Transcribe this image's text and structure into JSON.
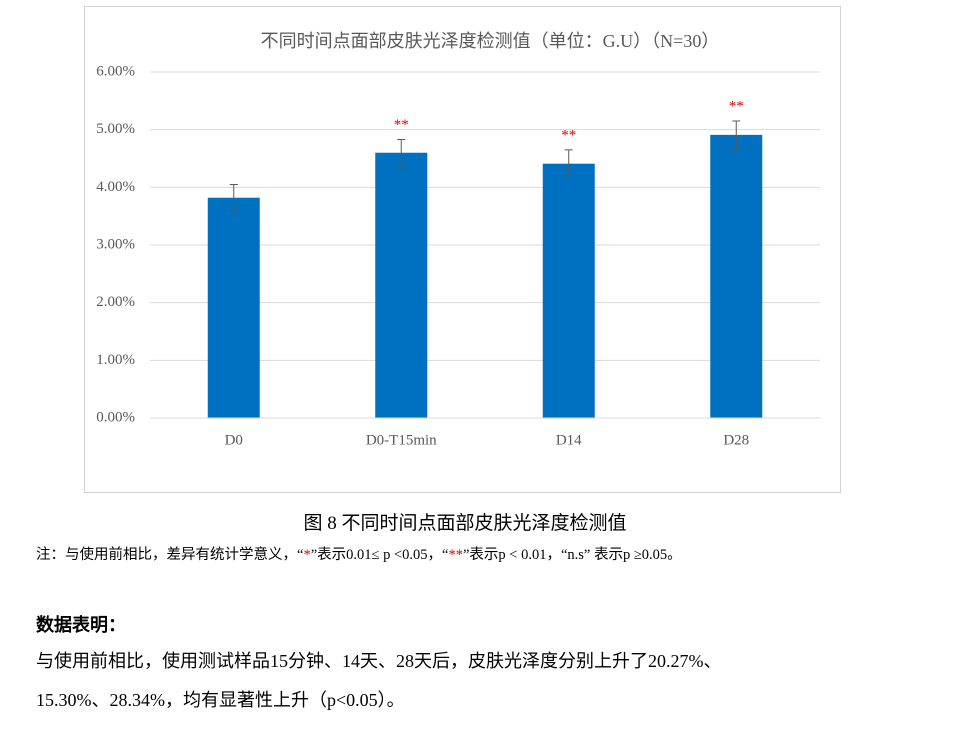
{
  "chart_data": {
    "type": "bar",
    "title": "不同时间点面部皮肤光泽度检测值（单位：G.U）（N=30）",
    "categories": [
      "D0",
      "D0-T15min",
      "D14",
      "D28"
    ],
    "values": [
      3.82,
      4.6,
      4.41,
      4.91
    ],
    "errors": [
      0.23,
      0.23,
      0.24,
      0.24
    ],
    "significance": [
      null,
      "**",
      "**",
      "**"
    ],
    "color": "#0070c0",
    "ylim": [
      0,
      6
    ],
    "yticks": [
      {
        "value": 0,
        "label": "0.00%"
      },
      {
        "value": 1,
        "label": "1.00%"
      },
      {
        "value": 2,
        "label": "2.00%"
      },
      {
        "value": 3,
        "label": "3.00%"
      },
      {
        "value": 4,
        "label": "4.00%"
      },
      {
        "value": 5,
        "label": "5.00%"
      },
      {
        "value": 6,
        "label": "6.00%"
      }
    ],
    "grid": true
  },
  "caption": "图 8 不同时间点面部皮肤光泽度检测值",
  "note": [
    "注：与使用前相比，差异有统计学意义，“",
    "*",
    "”表示0.01≤ p <0.05，“",
    "**",
    "”表示p < 0.01，“n.s” 表示p ≥0.05。"
  ],
  "heading": "数据表明：",
  "paragraph": [
    "与使用前相比，使用测试样品15分钟、14天、28天后，皮肤光泽度分别上升了20.27%、",
    "15.30%、28.34%，均有显著性上升（p<0.05）。"
  ]
}
